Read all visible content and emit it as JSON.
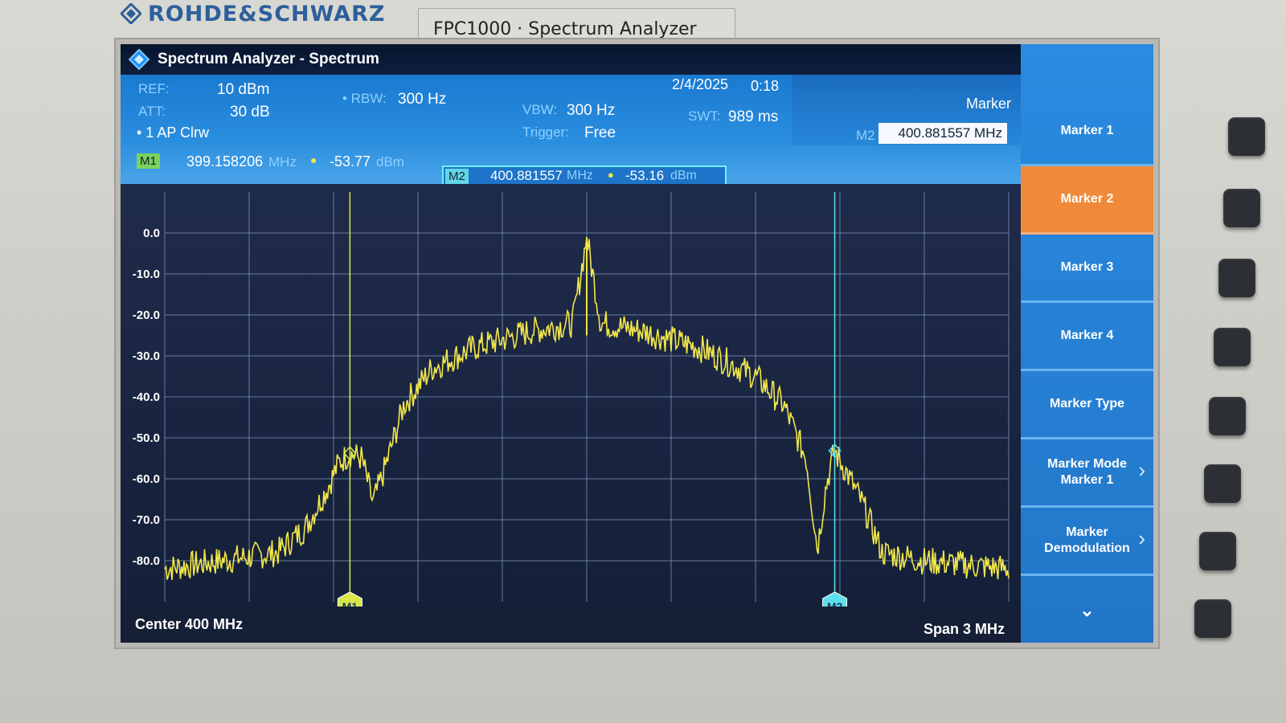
{
  "device": {
    "brand": "ROHDE&SCHWARZ",
    "model_plate": "FPC1000 · Spectrum Analyzer"
  },
  "window": {
    "title": "Spectrum Analyzer - Spectrum"
  },
  "settings": {
    "ref_label": "REF:",
    "ref_value": "10 dBm",
    "att_label": "ATT:",
    "att_value": "30 dB",
    "rbw_label": "• RBW:",
    "rbw_value": "300 Hz",
    "vbw_label": "VBW:",
    "vbw_value": "300 Hz",
    "trigger_label": "Trigger:",
    "trigger_value": "Free",
    "swt_label": "SWT:",
    "swt_value": "989 ms",
    "date": "2/4/2025",
    "time": "0:18",
    "trace": "• 1 AP  Clrw"
  },
  "marker_panel": {
    "title": "Marker",
    "active_label": "M2",
    "active_value": "400.881557 MHz"
  },
  "markers": {
    "m1_tag": "M1",
    "m1_freq": "399.158206",
    "m1_freq_unit": "MHz",
    "m1_level": "-53.77",
    "m1_level_unit": "dBm",
    "m2_tag": "M2",
    "m2_freq": "400.881557",
    "m2_freq_unit": "MHz",
    "m2_level": "-53.16",
    "m2_level_unit": "dBm"
  },
  "footer": {
    "center": "Center 400 MHz",
    "span": "Span 3 MHz"
  },
  "softkeys": [
    {
      "label": "Marker 1",
      "active": false
    },
    {
      "label": "Marker 2",
      "active": true
    },
    {
      "label": "Marker 3",
      "active": false
    },
    {
      "label": "Marker 4",
      "active": false
    },
    {
      "label": "Marker Type",
      "active": false
    },
    {
      "label": "Marker Mode\nMarker 1",
      "active": false
    },
    {
      "label": "Marker\nDemodulation",
      "active": false
    }
  ],
  "chart_data": {
    "type": "line",
    "ylim": [
      -90,
      10
    ],
    "y_ticks": [
      "0.0",
      "-10.0",
      "-20.0",
      "-30.0",
      "-40.0",
      "-50.0",
      "-60.0",
      "-70.0",
      "-80.0"
    ],
    "xlim": [
      398.5,
      401.5
    ],
    "x_unit": "MHz",
    "series": [
      {
        "color": "#f2e64a",
        "x": [
          398.5,
          398.7,
          398.9,
          399.0,
          399.08,
          399.12,
          399.158,
          399.2,
          399.24,
          399.28,
          399.35,
          399.45,
          399.6,
          399.8,
          399.95,
          400.0,
          400.05,
          400.2,
          400.4,
          400.6,
          400.7,
          400.78,
          400.82,
          400.85,
          400.88,
          400.92,
          400.98,
          401.05,
          401.2,
          401.5
        ],
        "y": [
          -82,
          -80,
          -78,
          -72,
          -62,
          -56,
          -53.8,
          -55,
          -66,
          -58,
          -42,
          -33,
          -28,
          -24,
          -22,
          -1,
          -22,
          -24,
          -28,
          -35,
          -42,
          -55,
          -77,
          -62,
          -53.2,
          -58,
          -66,
          -78,
          -80,
          -82
        ]
      }
    ],
    "markers": [
      {
        "name": "M1",
        "x": 399.158206,
        "y": -53.77,
        "color": "#d8e84a"
      },
      {
        "name": "M2",
        "x": 400.881557,
        "y": -53.16,
        "color": "#5fe0ee"
      }
    ]
  },
  "colors": {
    "trace": "#f2e64a",
    "softkey_active": "#f08a3a",
    "infobar": "#1f80d6"
  }
}
